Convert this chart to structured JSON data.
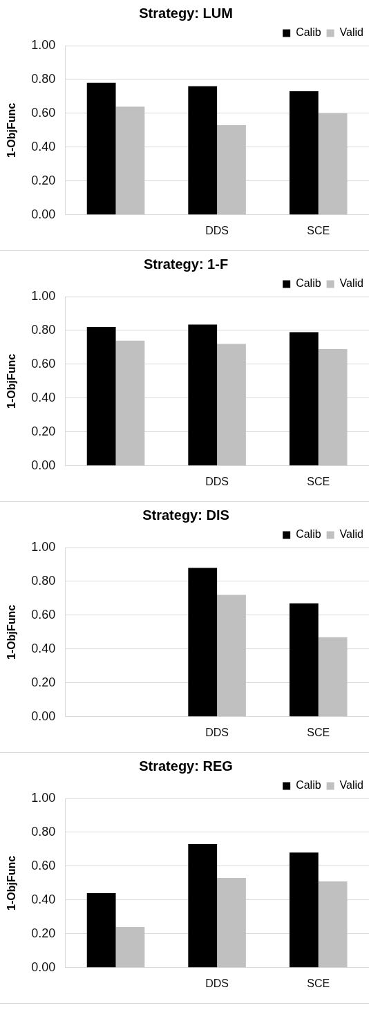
{
  "chart_data": [
    {
      "type": "bar",
      "title": "Strategy: LUM",
      "ylabel": "1-ObjFunc",
      "categories": [
        null,
        "DDS",
        "SCE"
      ],
      "series": [
        {
          "name": "Calib",
          "color": "#000000",
          "values": [
            0.78,
            0.76,
            0.73
          ]
        },
        {
          "name": "Valid",
          "color": "#c0c0c0",
          "values": [
            0.64,
            0.53,
            0.6
          ]
        }
      ],
      "ylim": [
        0,
        1
      ],
      "yticks": [
        {
          "value": 0,
          "label": "0.00"
        },
        {
          "value": 0.2,
          "label": "0.20"
        },
        {
          "value": 0.4,
          "label": "0.40"
        },
        {
          "value": 0.6,
          "label": "0.60"
        },
        {
          "value": 0.8,
          "label": "0.80"
        },
        {
          "value": 1,
          "label": "1.00"
        }
      ],
      "grid": "y",
      "legend": "top right"
    },
    {
      "type": "bar",
      "title": "Strategy: 1-F",
      "ylabel": "1-ObjFunc",
      "categories": [
        null,
        "DDS",
        "SCE"
      ],
      "series": [
        {
          "name": "Calib",
          "color": "#000000",
          "values": [
            0.82,
            0.835,
            0.79
          ]
        },
        {
          "name": "Valid",
          "color": "#c0c0c0",
          "values": [
            0.74,
            0.72,
            0.69
          ]
        }
      ],
      "ylim": [
        0,
        1
      ],
      "yticks": [
        {
          "value": 0,
          "label": "0.00"
        },
        {
          "value": 0.2,
          "label": "0.20"
        },
        {
          "value": 0.4,
          "label": "0.40"
        },
        {
          "value": 0.6,
          "label": "0.60"
        },
        {
          "value": 0.8,
          "label": "0.80"
        },
        {
          "value": 1,
          "label": "1.00"
        }
      ],
      "grid": "y",
      "legend": "top right"
    },
    {
      "type": "bar",
      "title": "Strategy: DIS",
      "ylabel": "1-ObjFunc",
      "categories": [
        null,
        "DDS",
        "SCE"
      ],
      "series": [
        {
          "name": "Calib",
          "color": "#000000",
          "values": [
            0,
            0.88,
            0.67
          ]
        },
        {
          "name": "Valid",
          "color": "#c0c0c0",
          "values": [
            0,
            0.72,
            0.47
          ]
        }
      ],
      "ylim": [
        0,
        1
      ],
      "yticks": [
        {
          "value": 0,
          "label": "0.00"
        },
        {
          "value": 0.2,
          "label": "0.20"
        },
        {
          "value": 0.4,
          "label": "0.40"
        },
        {
          "value": 0.6,
          "label": "0.60"
        },
        {
          "value": 0.8,
          "label": "0.80"
        },
        {
          "value": 1,
          "label": "1.00"
        }
      ],
      "grid": "y",
      "legend": "top right"
    },
    {
      "type": "bar",
      "title": "Strategy: REG",
      "ylabel": "1-ObjFunc",
      "categories": [
        null,
        "DDS",
        "SCE"
      ],
      "series": [
        {
          "name": "Calib",
          "color": "#000000",
          "values": [
            0.44,
            0.73,
            0.68
          ]
        },
        {
          "name": "Valid",
          "color": "#c0c0c0",
          "values": [
            0.24,
            0.53,
            0.51
          ]
        }
      ],
      "ylim": [
        0,
        1
      ],
      "yticks": [
        {
          "value": 0,
          "label": "0.00"
        },
        {
          "value": 0.2,
          "label": "0.20"
        },
        {
          "value": 0.4,
          "label": "0.40"
        },
        {
          "value": 0.6,
          "label": "0.60"
        },
        {
          "value": 0.8,
          "label": "0.80"
        },
        {
          "value": 1,
          "label": "1.00"
        }
      ],
      "grid": "y",
      "legend": "top right"
    }
  ]
}
